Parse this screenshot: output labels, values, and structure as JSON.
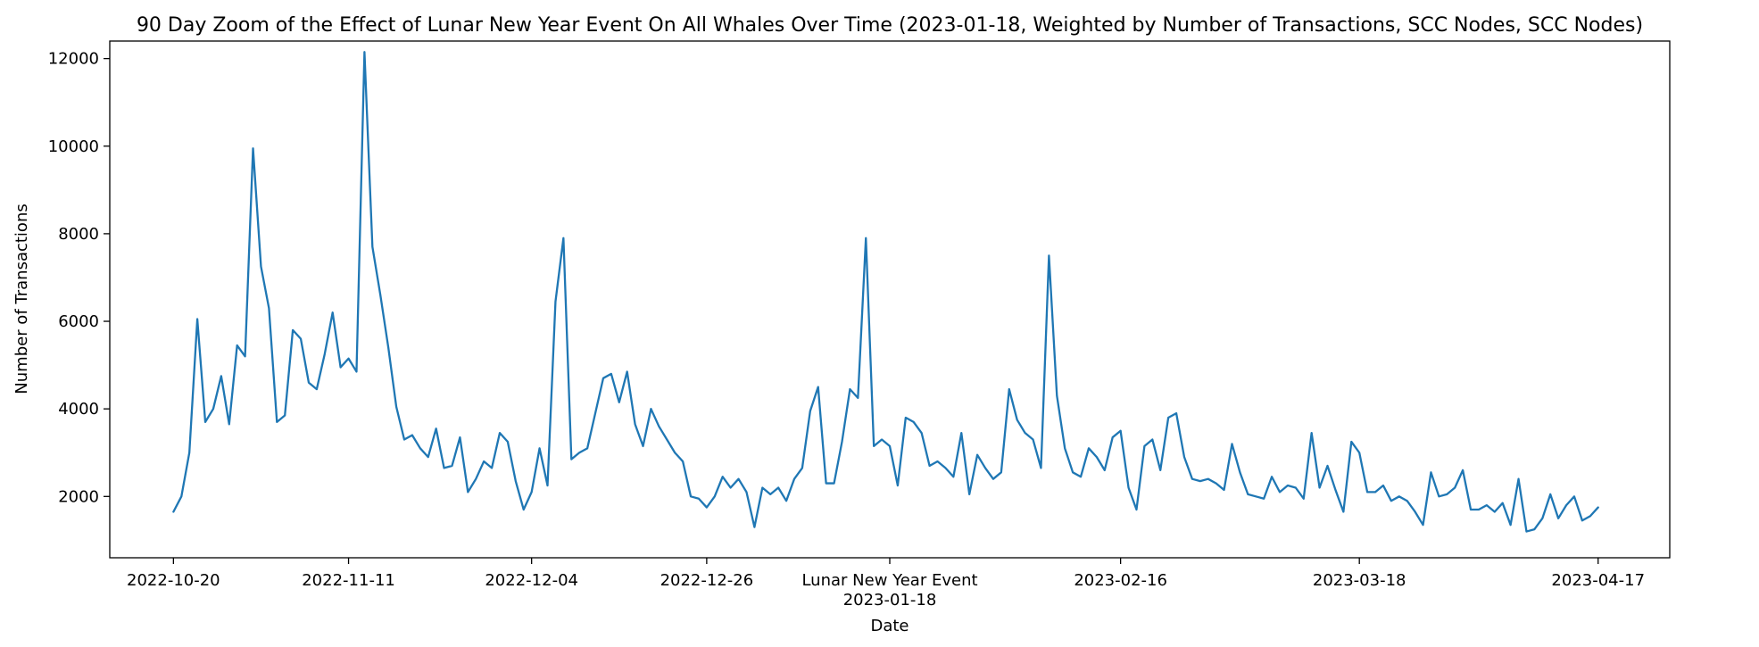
{
  "chart_data": {
    "type": "line",
    "title": "90 Day Zoom of the Effect of Lunar New Year Event On All Whales Over Time (2023-01-18, Weighted by Number of Transactions, SCC Nodes, SCC Nodes)",
    "xlabel": "Date",
    "ylabel": "Number of Transactions",
    "xlim": [
      "2022-10-12",
      "2023-04-26"
    ],
    "ylim": [
      600,
      12400
    ],
    "grid": false,
    "legend": "none",
    "line_color": "#1f77b4",
    "x_ticks": [
      {
        "date": "2022-10-20",
        "label": "2022-10-20"
      },
      {
        "date": "2022-11-11",
        "label": "2022-11-11"
      },
      {
        "date": "2022-12-04",
        "label": "2022-12-04"
      },
      {
        "date": "2022-12-26",
        "label": "2022-12-26"
      },
      {
        "date": "2023-01-18",
        "label": "2023-01-18",
        "annotation": "Lunar New Year Event"
      },
      {
        "date": "2023-02-16",
        "label": "2023-02-16"
      },
      {
        "date": "2023-03-18",
        "label": "2023-03-18"
      },
      {
        "date": "2023-04-17",
        "label": "2023-04-17"
      }
    ],
    "y_ticks": [
      2000,
      4000,
      6000,
      8000,
      10000,
      12000
    ],
    "series": [
      {
        "values": [
          {
            "x": "2022-10-20",
            "y": 1650
          },
          {
            "x": "2022-10-21",
            "y": 2000
          },
          {
            "x": "2022-10-22",
            "y": 3000
          },
          {
            "x": "2022-10-23",
            "y": 6050
          },
          {
            "x": "2022-10-24",
            "y": 3700
          },
          {
            "x": "2022-10-25",
            "y": 4000
          },
          {
            "x": "2022-10-26",
            "y": 4750
          },
          {
            "x": "2022-10-27",
            "y": 3650
          },
          {
            "x": "2022-10-28",
            "y": 5450
          },
          {
            "x": "2022-10-29",
            "y": 5200
          },
          {
            "x": "2022-10-30",
            "y": 9950
          },
          {
            "x": "2022-10-31",
            "y": 7250
          },
          {
            "x": "2022-11-01",
            "y": 6300
          },
          {
            "x": "2022-11-02",
            "y": 3700
          },
          {
            "x": "2022-11-03",
            "y": 3850
          },
          {
            "x": "2022-11-04",
            "y": 5800
          },
          {
            "x": "2022-11-05",
            "y": 5600
          },
          {
            "x": "2022-11-06",
            "y": 4600
          },
          {
            "x": "2022-11-07",
            "y": 4450
          },
          {
            "x": "2022-11-08",
            "y": 5250
          },
          {
            "x": "2022-11-09",
            "y": 6200
          },
          {
            "x": "2022-11-10",
            "y": 4950
          },
          {
            "x": "2022-11-11",
            "y": 5150
          },
          {
            "x": "2022-11-12",
            "y": 4850
          },
          {
            "x": "2022-11-13",
            "y": 12150
          },
          {
            "x": "2022-11-14",
            "y": 7700
          },
          {
            "x": "2022-11-15",
            "y": 6600
          },
          {
            "x": "2022-11-16",
            "y": 5400
          },
          {
            "x": "2022-11-17",
            "y": 4050
          },
          {
            "x": "2022-11-18",
            "y": 3300
          },
          {
            "x": "2022-11-19",
            "y": 3400
          },
          {
            "x": "2022-11-20",
            "y": 3100
          },
          {
            "x": "2022-11-21",
            "y": 2900
          },
          {
            "x": "2022-11-22",
            "y": 3550
          },
          {
            "x": "2022-11-23",
            "y": 2650
          },
          {
            "x": "2022-11-24",
            "y": 2700
          },
          {
            "x": "2022-11-25",
            "y": 3350
          },
          {
            "x": "2022-11-26",
            "y": 2100
          },
          {
            "x": "2022-11-27",
            "y": 2400
          },
          {
            "x": "2022-11-28",
            "y": 2800
          },
          {
            "x": "2022-11-29",
            "y": 2650
          },
          {
            "x": "2022-11-30",
            "y": 3450
          },
          {
            "x": "2022-12-01",
            "y": 3250
          },
          {
            "x": "2022-12-02",
            "y": 2350
          },
          {
            "x": "2022-12-03",
            "y": 1700
          },
          {
            "x": "2022-12-04",
            "y": 2100
          },
          {
            "x": "2022-12-05",
            "y": 3100
          },
          {
            "x": "2022-12-06",
            "y": 2250
          },
          {
            "x": "2022-12-07",
            "y": 6450
          },
          {
            "x": "2022-12-08",
            "y": 7900
          },
          {
            "x": "2022-12-09",
            "y": 2850
          },
          {
            "x": "2022-12-10",
            "y": 3000
          },
          {
            "x": "2022-12-11",
            "y": 3100
          },
          {
            "x": "2022-12-12",
            "y": 3900
          },
          {
            "x": "2022-12-13",
            "y": 4700
          },
          {
            "x": "2022-12-14",
            "y": 4800
          },
          {
            "x": "2022-12-15",
            "y": 4150
          },
          {
            "x": "2022-12-16",
            "y": 4850
          },
          {
            "x": "2022-12-17",
            "y": 3650
          },
          {
            "x": "2022-12-18",
            "y": 3150
          },
          {
            "x": "2022-12-19",
            "y": 4000
          },
          {
            "x": "2022-12-20",
            "y": 3600
          },
          {
            "x": "2022-12-21",
            "y": 3300
          },
          {
            "x": "2022-12-22",
            "y": 3000
          },
          {
            "x": "2022-12-23",
            "y": 2800
          },
          {
            "x": "2022-12-24",
            "y": 2000
          },
          {
            "x": "2022-12-25",
            "y": 1950
          },
          {
            "x": "2022-12-26",
            "y": 1750
          },
          {
            "x": "2022-12-27",
            "y": 2000
          },
          {
            "x": "2022-12-28",
            "y": 2450
          },
          {
            "x": "2022-12-29",
            "y": 2200
          },
          {
            "x": "2022-12-30",
            "y": 2400
          },
          {
            "x": "2022-12-31",
            "y": 2100
          },
          {
            "x": "2023-01-01",
            "y": 1300
          },
          {
            "x": "2023-01-02",
            "y": 2200
          },
          {
            "x": "2023-01-03",
            "y": 2050
          },
          {
            "x": "2023-01-04",
            "y": 2200
          },
          {
            "x": "2023-01-05",
            "y": 1900
          },
          {
            "x": "2023-01-06",
            "y": 2400
          },
          {
            "x": "2023-01-07",
            "y": 2650
          },
          {
            "x": "2023-01-08",
            "y": 3950
          },
          {
            "x": "2023-01-09",
            "y": 4500
          },
          {
            "x": "2023-01-10",
            "y": 2300
          },
          {
            "x": "2023-01-11",
            "y": 2300
          },
          {
            "x": "2023-01-12",
            "y": 3250
          },
          {
            "x": "2023-01-13",
            "y": 4450
          },
          {
            "x": "2023-01-14",
            "y": 4250
          },
          {
            "x": "2023-01-15",
            "y": 7900
          },
          {
            "x": "2023-01-16",
            "y": 3150
          },
          {
            "x": "2023-01-17",
            "y": 3300
          },
          {
            "x": "2023-01-18",
            "y": 3150
          },
          {
            "x": "2023-01-19",
            "y": 2250
          },
          {
            "x": "2023-01-20",
            "y": 3800
          },
          {
            "x": "2023-01-21",
            "y": 3700
          },
          {
            "x": "2023-01-22",
            "y": 3450
          },
          {
            "x": "2023-01-23",
            "y": 2700
          },
          {
            "x": "2023-01-24",
            "y": 2800
          },
          {
            "x": "2023-01-25",
            "y": 2650
          },
          {
            "x": "2023-01-26",
            "y": 2450
          },
          {
            "x": "2023-01-27",
            "y": 3450
          },
          {
            "x": "2023-01-28",
            "y": 2050
          },
          {
            "x": "2023-01-29",
            "y": 2950
          },
          {
            "x": "2023-01-30",
            "y": 2650
          },
          {
            "x": "2023-01-31",
            "y": 2400
          },
          {
            "x": "2023-02-01",
            "y": 2550
          },
          {
            "x": "2023-02-02",
            "y": 4450
          },
          {
            "x": "2023-02-03",
            "y": 3750
          },
          {
            "x": "2023-02-04",
            "y": 3450
          },
          {
            "x": "2023-02-05",
            "y": 3300
          },
          {
            "x": "2023-02-06",
            "y": 2650
          },
          {
            "x": "2023-02-07",
            "y": 7500
          },
          {
            "x": "2023-02-08",
            "y": 4300
          },
          {
            "x": "2023-02-09",
            "y": 3100
          },
          {
            "x": "2023-02-10",
            "y": 2550
          },
          {
            "x": "2023-02-11",
            "y": 2450
          },
          {
            "x": "2023-02-12",
            "y": 3100
          },
          {
            "x": "2023-02-13",
            "y": 2900
          },
          {
            "x": "2023-02-14",
            "y": 2600
          },
          {
            "x": "2023-02-15",
            "y": 3350
          },
          {
            "x": "2023-02-16",
            "y": 3500
          },
          {
            "x": "2023-02-17",
            "y": 2200
          },
          {
            "x": "2023-02-18",
            "y": 1700
          },
          {
            "x": "2023-02-19",
            "y": 3150
          },
          {
            "x": "2023-02-20",
            "y": 3300
          },
          {
            "x": "2023-02-21",
            "y": 2600
          },
          {
            "x": "2023-02-22",
            "y": 3800
          },
          {
            "x": "2023-02-23",
            "y": 3900
          },
          {
            "x": "2023-02-24",
            "y": 2900
          },
          {
            "x": "2023-02-25",
            "y": 2400
          },
          {
            "x": "2023-02-26",
            "y": 2350
          },
          {
            "x": "2023-02-27",
            "y": 2400
          },
          {
            "x": "2023-02-28",
            "y": 2300
          },
          {
            "x": "2023-03-01",
            "y": 2150
          },
          {
            "x": "2023-03-02",
            "y": 3200
          },
          {
            "x": "2023-03-03",
            "y": 2550
          },
          {
            "x": "2023-03-04",
            "y": 2050
          },
          {
            "x": "2023-03-05",
            "y": 2000
          },
          {
            "x": "2023-03-06",
            "y": 1950
          },
          {
            "x": "2023-03-07",
            "y": 2450
          },
          {
            "x": "2023-03-08",
            "y": 2100
          },
          {
            "x": "2023-03-09",
            "y": 2250
          },
          {
            "x": "2023-03-10",
            "y": 2200
          },
          {
            "x": "2023-03-11",
            "y": 1950
          },
          {
            "x": "2023-03-12",
            "y": 3450
          },
          {
            "x": "2023-03-13",
            "y": 2200
          },
          {
            "x": "2023-03-14",
            "y": 2700
          },
          {
            "x": "2023-03-15",
            "y": 2150
          },
          {
            "x": "2023-03-16",
            "y": 1650
          },
          {
            "x": "2023-03-17",
            "y": 3250
          },
          {
            "x": "2023-03-18",
            "y": 3000
          },
          {
            "x": "2023-03-19",
            "y": 2100
          },
          {
            "x": "2023-03-20",
            "y": 2100
          },
          {
            "x": "2023-03-21",
            "y": 2250
          },
          {
            "x": "2023-03-22",
            "y": 1900
          },
          {
            "x": "2023-03-23",
            "y": 2000
          },
          {
            "x": "2023-03-24",
            "y": 1900
          },
          {
            "x": "2023-03-25",
            "y": 1650
          },
          {
            "x": "2023-03-26",
            "y": 1350
          },
          {
            "x": "2023-03-27",
            "y": 2550
          },
          {
            "x": "2023-03-28",
            "y": 2000
          },
          {
            "x": "2023-03-29",
            "y": 2050
          },
          {
            "x": "2023-03-30",
            "y": 2200
          },
          {
            "x": "2023-03-31",
            "y": 2600
          },
          {
            "x": "2023-04-01",
            "y": 1700
          },
          {
            "x": "2023-04-02",
            "y": 1700
          },
          {
            "x": "2023-04-03",
            "y": 1800
          },
          {
            "x": "2023-04-04",
            "y": 1650
          },
          {
            "x": "2023-04-05",
            "y": 1850
          },
          {
            "x": "2023-04-06",
            "y": 1350
          },
          {
            "x": "2023-04-07",
            "y": 2400
          },
          {
            "x": "2023-04-08",
            "y": 1200
          },
          {
            "x": "2023-04-09",
            "y": 1250
          },
          {
            "x": "2023-04-10",
            "y": 1500
          },
          {
            "x": "2023-04-11",
            "y": 2050
          },
          {
            "x": "2023-04-12",
            "y": 1500
          },
          {
            "x": "2023-04-13",
            "y": 1800
          },
          {
            "x": "2023-04-14",
            "y": 2000
          },
          {
            "x": "2023-04-15",
            "y": 1450
          },
          {
            "x": "2023-04-16",
            "y": 1550
          },
          {
            "x": "2023-04-17",
            "y": 1750
          }
        ]
      }
    ]
  }
}
